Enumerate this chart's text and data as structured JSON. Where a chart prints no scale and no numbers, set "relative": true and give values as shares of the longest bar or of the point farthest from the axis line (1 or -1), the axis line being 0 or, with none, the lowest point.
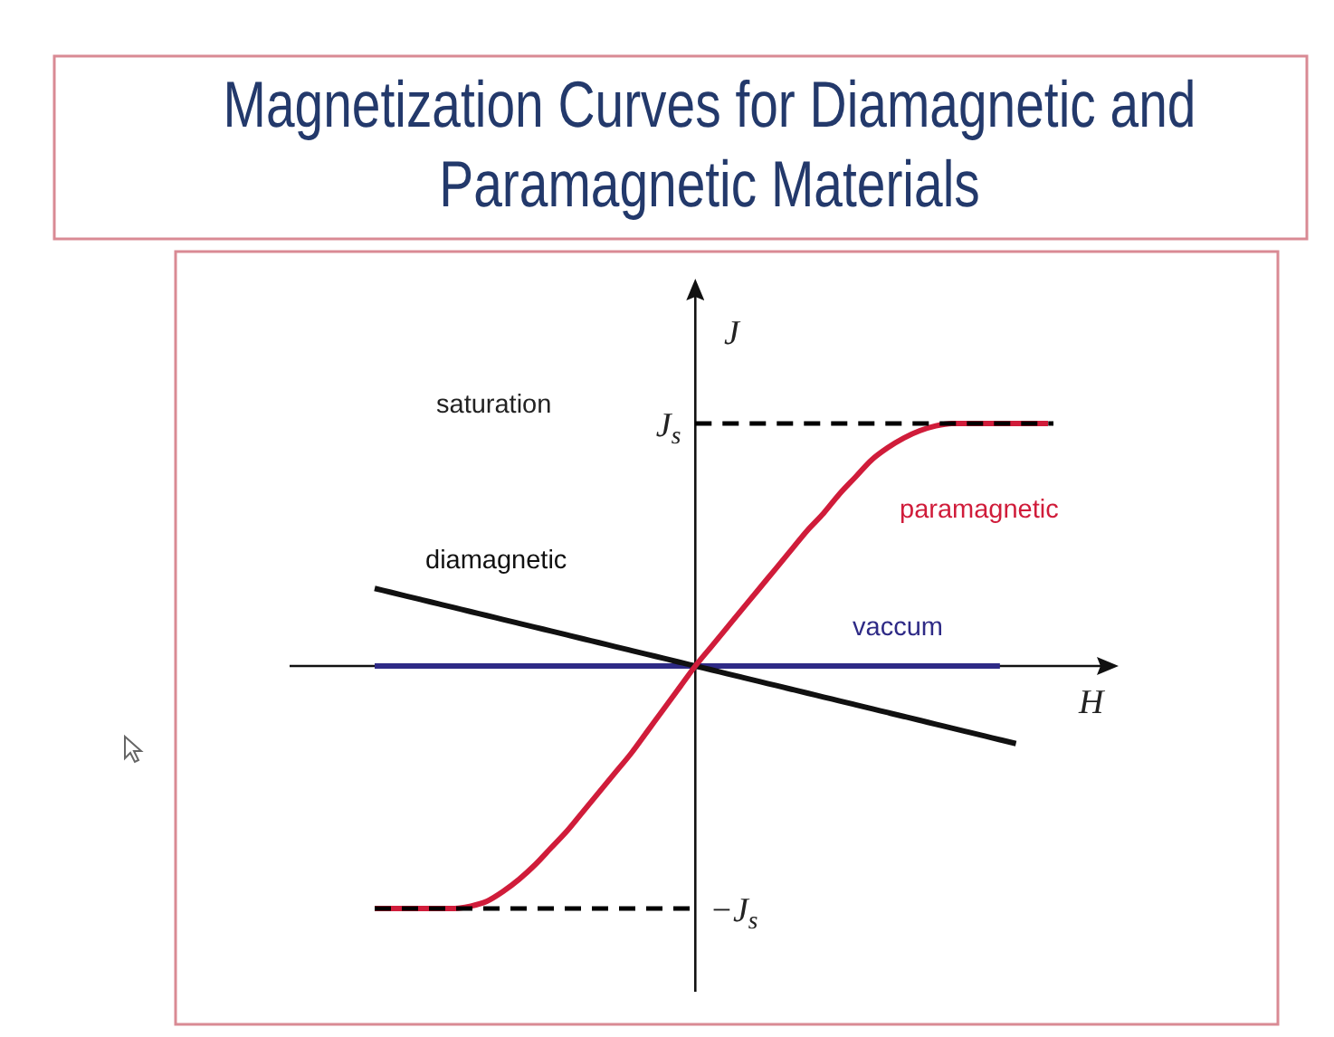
{
  "chart_data": {
    "type": "line",
    "title": "Magnetization Curves for Diamagnetic and Paramagnetic Materials",
    "xlabel": "H",
    "ylabel": "J",
    "relative": true,
    "categories": [
      null,
      null,
      null,
      null,
      null,
      null,
      null,
      null,
      null,
      null,
      null,
      null,
      null,
      null,
      null,
      null,
      null,
      null,
      null,
      null,
      null,
      null,
      null,
      null,
      null,
      null,
      null,
      null,
      null,
      null,
      null,
      null,
      null,
      null,
      null,
      null,
      null,
      null,
      null,
      null,
      null,
      null,
      null
    ],
    "series": [
      {
        "name": "paramagnetic",
        "color": "#d01c3a",
        "values": [
          -1,
          -1,
          -1,
          -1,
          -1,
          -1,
          -0.99,
          -0.97,
          -0.93,
          -0.88,
          -0.82,
          -0.75,
          -0.68,
          -0.6,
          -0.52,
          -0.44,
          -0.36,
          -0.27,
          -0.18,
          -0.09,
          0,
          0.08,
          0.16,
          0.24,
          0.32,
          0.4,
          0.48,
          0.56,
          0.63,
          0.71,
          0.78,
          0.85,
          0.9,
          0.94,
          0.97,
          0.99,
          1,
          1,
          1,
          1,
          1,
          1,
          1
        ]
      },
      {
        "name": "diamagnetic",
        "color": "#111111",
        "values": [
          0.32,
          0.304,
          0.288,
          0.272,
          0.256,
          0.24,
          0.224,
          0.208,
          0.192,
          0.176,
          0.16,
          0.144,
          0.128,
          0.112,
          0.096,
          0.08,
          0.064,
          0.048,
          0.032,
          0.016,
          0,
          -0.016,
          -0.032,
          -0.048,
          -0.064,
          -0.08,
          -0.096,
          -0.112,
          -0.128,
          -0.144,
          -0.16,
          -0.176,
          -0.192,
          -0.208,
          -0.224,
          -0.24,
          -0.256,
          -0.272,
          -0.288,
          -0.304,
          -0.32,
          null,
          null
        ]
      },
      {
        "name": "vaccum",
        "color": "#2e2a86",
        "values": [
          0,
          0,
          0,
          0,
          0,
          0,
          0,
          0,
          0,
          0,
          0,
          0,
          0,
          0,
          0,
          0,
          0,
          0,
          0,
          0,
          0,
          0,
          0,
          0,
          0,
          0,
          0,
          0,
          0,
          0,
          0,
          0,
          0,
          0,
          0,
          0,
          0,
          0,
          0,
          0,
          null,
          null,
          null
        ]
      }
    ],
    "ref_lines": [
      {
        "axis": "y",
        "value": 1,
        "label": "J$_{s}$",
        "color": "#000000",
        "line_style": "dashed"
      },
      {
        "axis": "y",
        "value": -1,
        "label": "−J$_{s}$",
        "color": "#000000",
        "line_style": "dashed"
      }
    ],
    "annotations": [
      "saturation"
    ]
  }
}
